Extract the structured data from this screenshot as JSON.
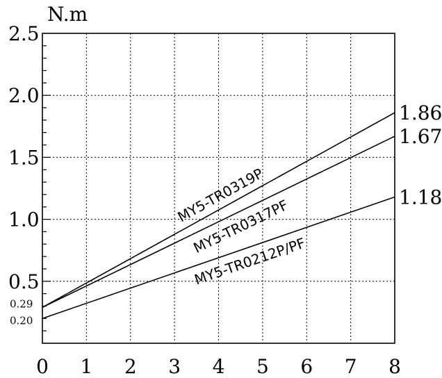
{
  "chart_data": {
    "type": "line",
    "ylabel": "N.m",
    "xlabel": "",
    "title": "",
    "xlim": [
      0,
      8
    ],
    "ylim": [
      0,
      2.5
    ],
    "grid": true,
    "x_ticks": [
      "0",
      "1",
      "2",
      "3",
      "4",
      "5",
      "6",
      "7",
      "8"
    ],
    "y_ticks": [
      {
        "value": 0.5,
        "label": "0.5"
      },
      {
        "value": 1.0,
        "label": "1.0"
      },
      {
        "value": 1.5,
        "label": "1.5"
      },
      {
        "value": 2.0,
        "label": "2.0"
      },
      {
        "value": 2.5,
        "label": "2.5"
      }
    ],
    "y_extra_ticks": [
      {
        "value": 0.29,
        "label": "0.29"
      },
      {
        "value": 0.2,
        "label": "0.20"
      }
    ],
    "series": [
      {
        "name": "MY5-TR0319P",
        "x": [
          0,
          8
        ],
        "y": [
          0.29,
          1.86
        ],
        "end_label": "1.86"
      },
      {
        "name": "MY5-TR0317PF",
        "x": [
          0,
          8
        ],
        "y": [
          0.29,
          1.67
        ],
        "end_label": "1.67"
      },
      {
        "name": "MY5-TR0212P/PF",
        "x": [
          0,
          8
        ],
        "y": [
          0.2,
          1.18
        ],
        "end_label": "1.18"
      }
    ]
  }
}
